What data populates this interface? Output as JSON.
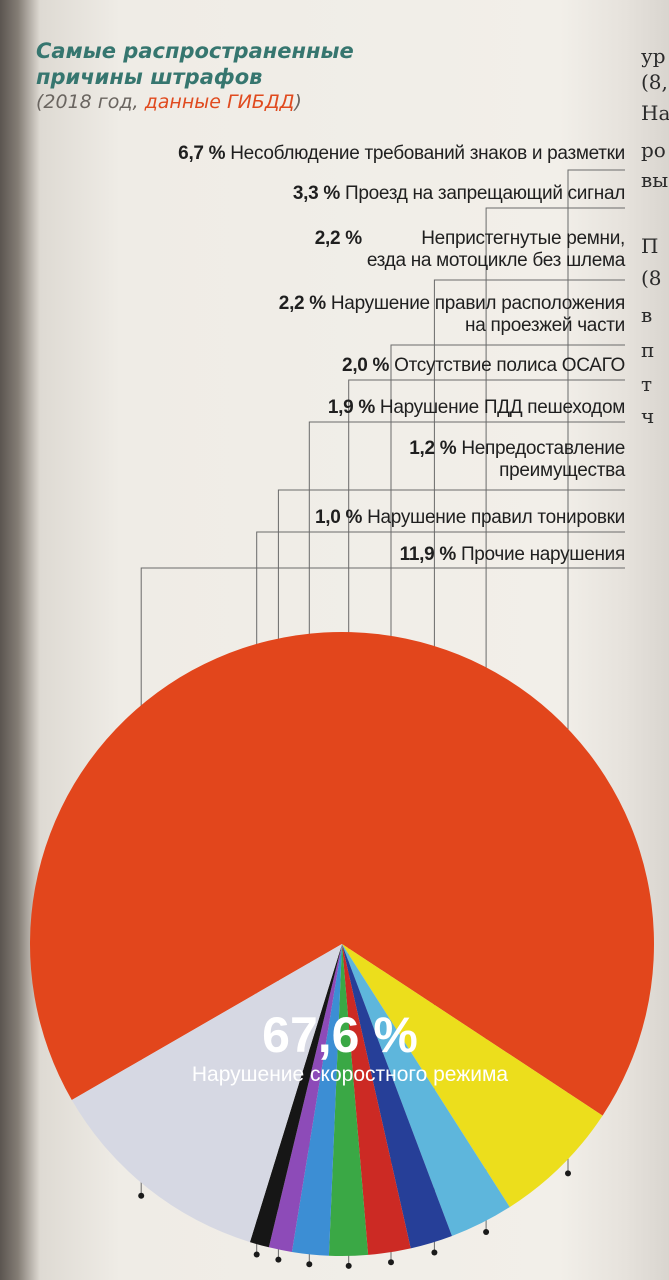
{
  "title": {
    "line1": "Самые распространенные",
    "line2": "причины штрафов",
    "sub_open": "(2018 год, ",
    "sub_source": "данные ГИБДД",
    "sub_close": ")"
  },
  "side_text": [
    "ур",
    "(8,",
    "На",
    "ро",
    "вы",
    "П",
    "(8",
    "в",
    "п",
    "т",
    "ч"
  ],
  "chart_data": {
    "type": "pie",
    "title": "Самые распространенные причины штрафов",
    "subtitle": "(2018 год, данные ГИБДД)",
    "slices": [
      {
        "label": "Нарушение скоростного режима",
        "value": 67.6,
        "value_label": "67,6 %",
        "color": "#e2461c"
      },
      {
        "label": "Несоблюдение требований знаков и разметки",
        "value": 6.7,
        "value_label": "6,7 %",
        "color": "#ecde1c"
      },
      {
        "label": "Проезд на запрещающий сигнал",
        "value": 3.3,
        "value_label": "3,3 %",
        "color": "#5eb6dc"
      },
      {
        "label": "Непристегнутые ремни, езда на мотоцикле без шлема",
        "value": 2.2,
        "value_label": "2,2 %",
        "color": "#263f98"
      },
      {
        "label": "Нарушение правил расположения на проезжей части",
        "value": 2.2,
        "value_label": "2,2 %",
        "color": "#cc2a24"
      },
      {
        "label": "Отсутствие полиса ОСАГО",
        "value": 2.0,
        "value_label": "2,0 %",
        "color": "#3aa845"
      },
      {
        "label": "Нарушение ПДД пешеходом",
        "value": 1.9,
        "value_label": "1,9 %",
        "color": "#3c8ed4"
      },
      {
        "label": "Непредоставление преимущества",
        "value": 1.2,
        "value_label": "1,2 %",
        "color": "#8d4bb8"
      },
      {
        "label": "Нарушение правил тонировки",
        "value": 1.0,
        "value_label": "1,0 %",
        "color": "#161616"
      },
      {
        "label": "Прочие нарушения",
        "value": 11.9,
        "value_label": "11,9 %",
        "color": "#d6d8e3"
      }
    ]
  },
  "labels": [
    {
      "pct": "6,7 %",
      "lines": [
        "Несоблюдение требований знаков и разметки"
      ]
    },
    {
      "pct": "3,3 %",
      "lines": [
        "Проезд на запрещающий сигнал"
      ]
    },
    {
      "pct": "2,2 %",
      "lines": [
        "Непристегнутые ремни,",
        "езда на мотоцикле без шлема"
      ]
    },
    {
      "pct": "2,2 %",
      "lines": [
        "Нарушение правил расположения",
        "на проезжей части"
      ]
    },
    {
      "pct": "2,0 %",
      "lines": [
        "Отсутствие полиса ОСАГО"
      ]
    },
    {
      "pct": "1,9 %",
      "lines": [
        "Нарушение ПДД пешеходом"
      ]
    },
    {
      "pct": "1,2 %",
      "lines": [
        "Непредоставление",
        "преимущества"
      ]
    },
    {
      "pct": "1,0 %",
      "lines": [
        "Нарушение правил тонировки"
      ]
    },
    {
      "pct": "11,9 %",
      "lines": [
        "Прочие нарушения"
      ]
    }
  ],
  "main_label": {
    "pct": "67,6 %",
    "name": "Нарушение скоростного режима"
  }
}
